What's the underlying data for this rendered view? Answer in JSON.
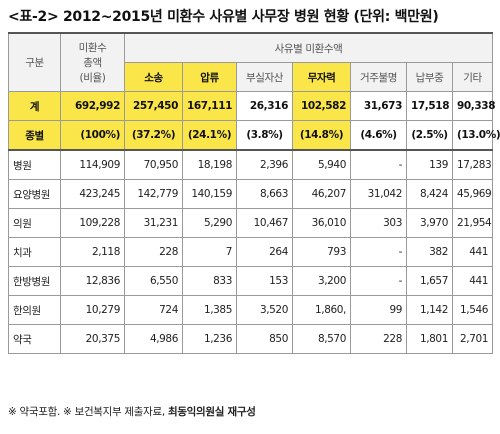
{
  "title": "<표-2> 2012~2015년 미환수 사유별 사무장 병원 현황 (단위: 백만원)",
  "header": {
    "gubun": "구분",
    "total_line1": "미환수",
    "total_line2": "총액",
    "total_line3": "(비율)",
    "group": "사유별 미환수액",
    "reasons": [
      "소송",
      "압류",
      "부실자산",
      "무자력",
      "거주불명",
      "납부중",
      "기타"
    ]
  },
  "totals": {
    "label_top": "계",
    "label_bottom": "종별",
    "amount": "692,992",
    "ratio": "(100%)",
    "values": [
      "257,450",
      "167,111",
      "26,316",
      "102,582",
      "31,673",
      "17,518",
      "90,338"
    ],
    "ratios": [
      "(37.2%)",
      "(24.1%)",
      "(3.8%)",
      "(14.8%)",
      "(4.6%)",
      "(2.5%)",
      "(13.0%)"
    ]
  },
  "rows": [
    {
      "label": "병원",
      "total": "114,909",
      "values": [
        "70,950",
        "18,198",
        "2,396",
        "5,940",
        "-",
        "139",
        "17,283"
      ]
    },
    {
      "label": "요양병원",
      "total": "423,245",
      "values": [
        "142,779",
        "140,159",
        "8,663",
        "46,207",
        "31,042",
        "8,424",
        "45,969"
      ]
    },
    {
      "label": "의원",
      "total": "109,228",
      "values": [
        "31,231",
        "5,290",
        "10,467",
        "36,010",
        "303",
        "3,970",
        "21,954"
      ]
    },
    {
      "label": "치과",
      "total": "2,118",
      "values": [
        "228",
        "7",
        "264",
        "793",
        "-",
        "382",
        "441"
      ]
    },
    {
      "label": "한방병원",
      "total": "12,836",
      "values": [
        "6,550",
        "833",
        "153",
        "3,200",
        "-",
        "1,657",
        "441"
      ]
    },
    {
      "label": "한의원",
      "total": "10,279",
      "values": [
        "724",
        "1,385",
        "3,520",
        "1,860,",
        "99",
        "1,142",
        "1,546"
      ]
    },
    {
      "label": "약국",
      "total": "20,375",
      "values": [
        "4,986",
        "1,236",
        "850",
        "8,570",
        "228",
        "1,801",
        "2,701"
      ]
    }
  ],
  "footnote": {
    "part1": "※ 약국포함.  ※ 보건복지부 제출자료, ",
    "part2": "최동익의원실 재구성"
  },
  "colors": {
    "highlight": "#fbe64a",
    "header_bg": "#f2f2f2",
    "border": "#9a9a9a"
  }
}
